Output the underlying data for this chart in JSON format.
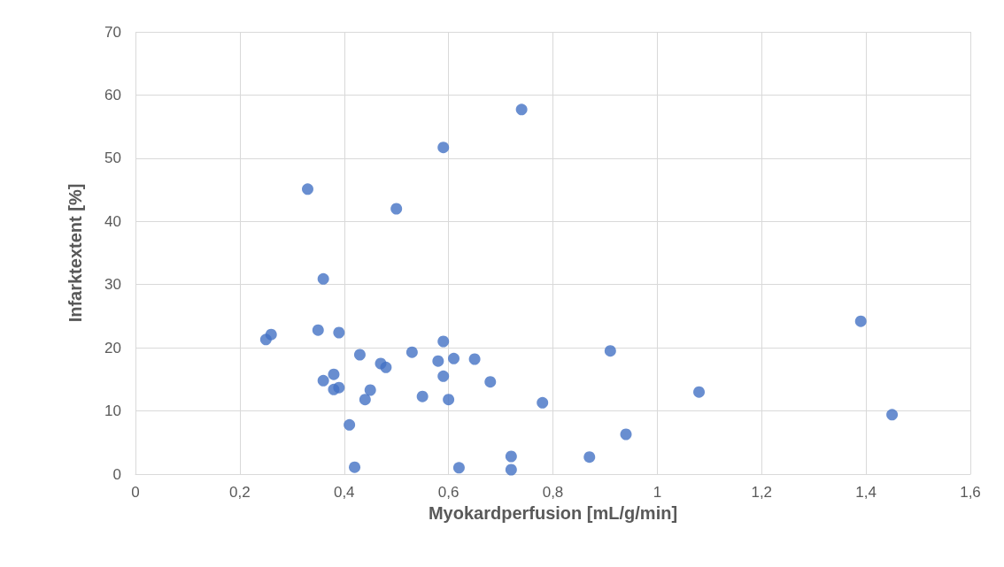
{
  "chart_data": {
    "type": "scatter",
    "xlabel": "Myokardperfusion [mL/g/min]",
    "ylabel": "Infarktextent [%]",
    "x": [
      0.25,
      0.26,
      0.33,
      0.35,
      0.36,
      0.36,
      0.38,
      0.38,
      0.39,
      0.39,
      0.41,
      0.42,
      0.43,
      0.44,
      0.45,
      0.47,
      0.48,
      0.5,
      0.53,
      0.55,
      0.58,
      0.59,
      0.59,
      0.59,
      0.6,
      0.61,
      0.62,
      0.65,
      0.68,
      0.72,
      0.72,
      0.74,
      0.78,
      0.87,
      0.91,
      0.94,
      1.08,
      1.39,
      1.45
    ],
    "values": [
      21.3,
      22.1,
      45.1,
      22.8,
      30.9,
      14.8,
      15.8,
      13.4,
      22.4,
      13.7,
      7.8,
      1.1,
      18.9,
      11.8,
      13.3,
      17.5,
      16.9,
      42.0,
      19.3,
      12.3,
      17.9,
      51.7,
      21.0,
      15.5,
      11.8,
      18.3,
      1.0,
      18.2,
      14.6,
      2.8,
      0.7,
      57.7,
      11.3,
      2.7,
      19.5,
      6.3,
      13.0,
      24.2,
      9.4
    ],
    "color": "#4472c4",
    "marker": "circle",
    "xlim": [
      0,
      1.6
    ],
    "xticks": [
      0,
      {
        "value": 0.2,
        "label": "0,2"
      },
      {
        "value": 0.4,
        "label": "0,4"
      },
      {
        "value": 0.6,
        "label": "0,6"
      },
      {
        "value": 0.8,
        "label": "0,8"
      },
      1,
      {
        "value": 1.2,
        "label": "1,2"
      },
      {
        "value": 1.4,
        "label": "1,4"
      },
      {
        "value": 1.6,
        "label": "1,6"
      }
    ],
    "ylim": [
      0,
      70
    ],
    "yticks": [
      0,
      10,
      20,
      30,
      40,
      50,
      60,
      70
    ],
    "grid": true
  }
}
